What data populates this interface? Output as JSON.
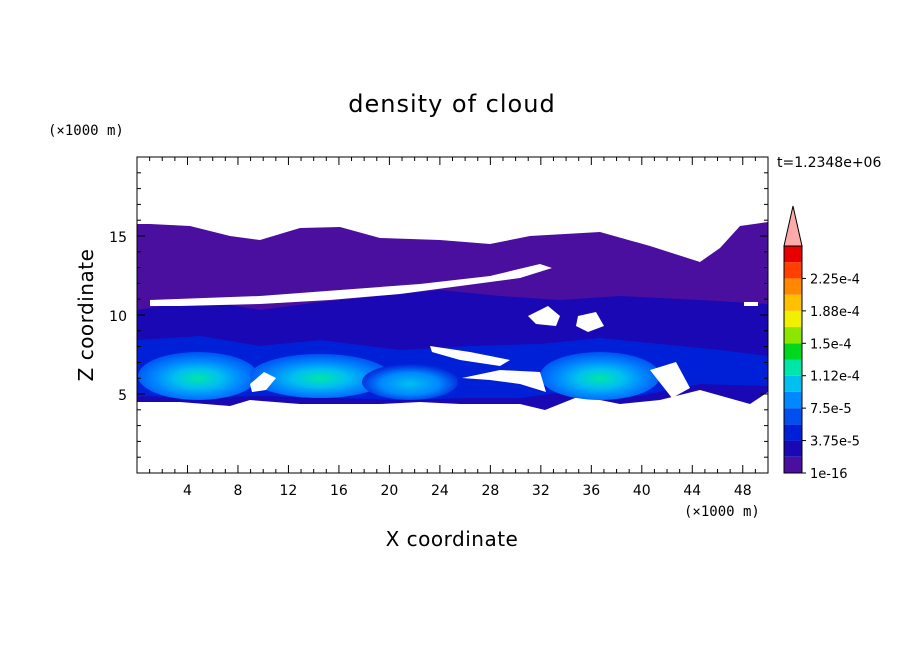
{
  "chart_data": {
    "type": "heatmap",
    "title": "density of cloud",
    "xlabel": "X coordinate",
    "ylabel": "Z coordinate",
    "x_unit": "(×1000 m)",
    "y_unit": "(×1000 m)",
    "time_label": "t=1.2348e+06",
    "xlim": [
      0,
      50
    ],
    "ylim": [
      0,
      20
    ],
    "x_ticks": [
      4,
      8,
      12,
      16,
      20,
      24,
      28,
      32,
      36,
      40,
      44,
      48
    ],
    "y_ticks": [
      5,
      10,
      15
    ],
    "colorbar": {
      "labels": [
        "1e-16",
        "3.75e-5",
        "7.5e-5",
        "1.12e-4",
        "1.5e-4",
        "1.88e-4",
        "2.25e-4"
      ],
      "levels": [
        1e-16,
        1.875e-05,
        3.75e-05,
        5.625e-05,
        7.5e-05,
        9.375e-05,
        0.000112,
        0.00013125,
        0.00015,
        0.00016875,
        0.000188,
        0.00020625,
        0.000225,
        0.00024375
      ],
      "colors": [
        "#4b0fa0",
        "#1a08b4",
        "#0020d8",
        "#0050f0",
        "#0088ff",
        "#00c0f0",
        "#00e6a8",
        "#00d820",
        "#8ce600",
        "#f0f000",
        "#ffc000",
        "#ff8800",
        "#ff4000",
        "#e80000"
      ],
      "extend_color": "#ffaaaa"
    },
    "regions": {
      "upper_band": {
        "x": [
          0,
          50
        ],
        "z": [
          10.5,
          15.5
        ],
        "level": 0
      },
      "lower_band": {
        "x": [
          0,
          50
        ],
        "z": [
          4.5,
          10.5
        ],
        "level": 1
      },
      "cells": [
        {
          "x_center": 5.5,
          "z_center": 6.3,
          "peak_level": 7
        },
        {
          "x_center": 14.5,
          "z_center": 6.4,
          "peak_level": 7
        },
        {
          "x_center": 21.5,
          "z_center": 5.9,
          "peak_level": 5
        },
        {
          "x_center": 36.5,
          "z_center": 6.4,
          "peak_level": 7
        }
      ]
    }
  }
}
